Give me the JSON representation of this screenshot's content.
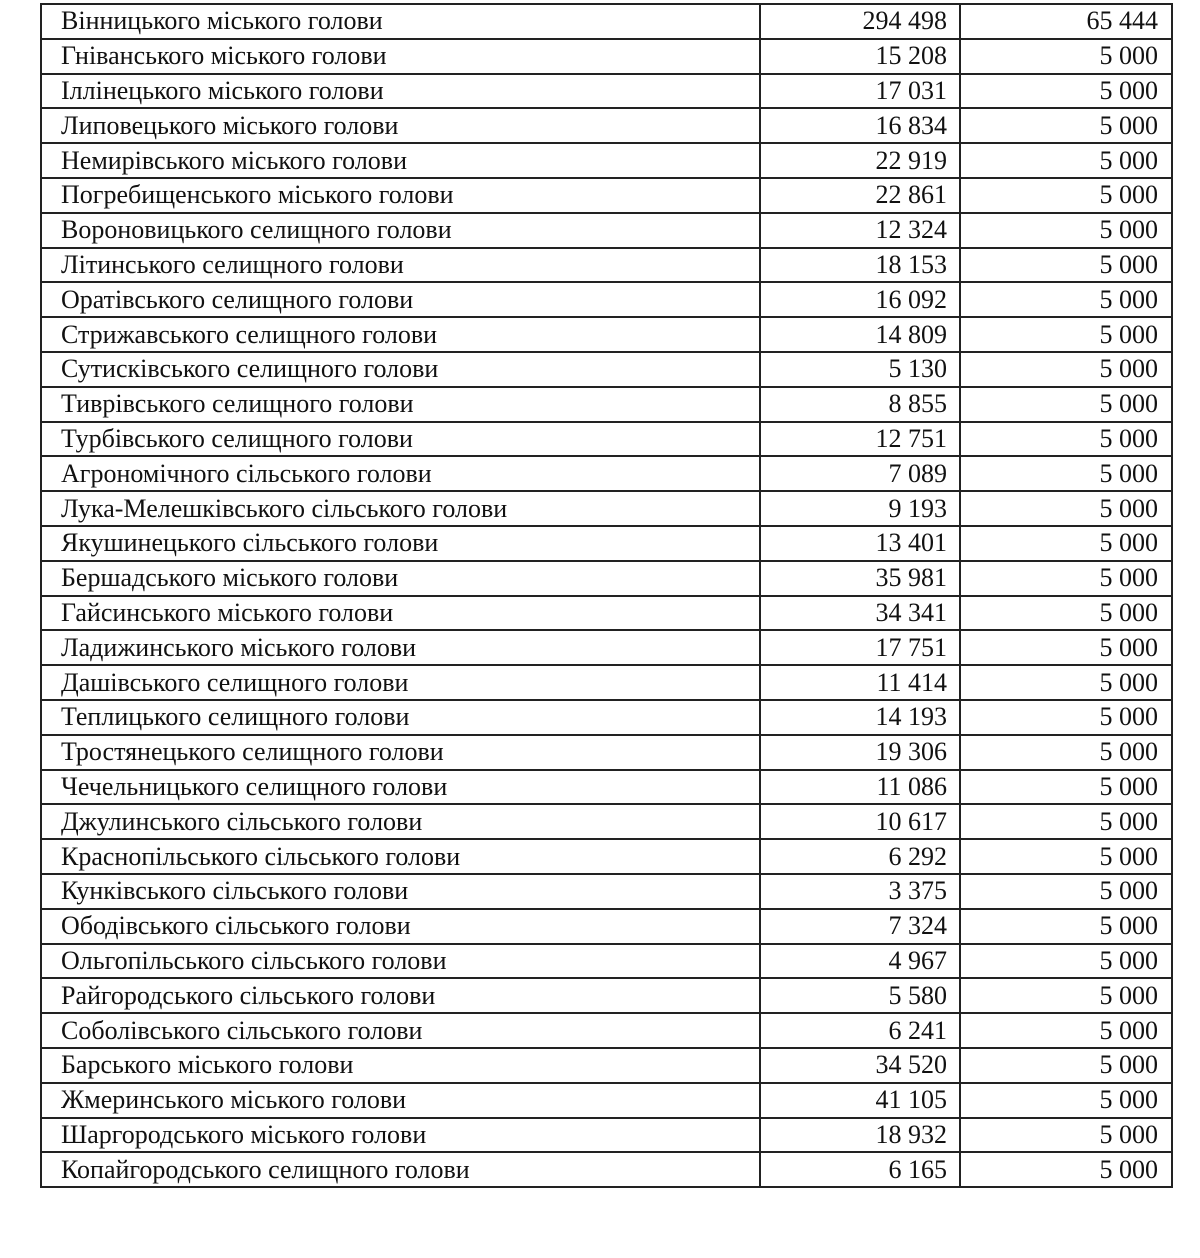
{
  "table": {
    "rows": [
      {
        "name": "Вінницького міського голови",
        "population": "294 498",
        "amount": "65 444"
      },
      {
        "name": "Гніванського міського голови",
        "population": "15 208",
        "amount": "5 000"
      },
      {
        "name": "Іллінецького міського голови",
        "population": "17 031",
        "amount": "5 000"
      },
      {
        "name": "Липовецького міського голови",
        "population": "16 834",
        "amount": "5 000"
      },
      {
        "name": "Немирівського міського голови",
        "population": "22 919",
        "amount": "5 000"
      },
      {
        "name": "Погребищенського міського голови",
        "population": "22 861",
        "amount": "5 000"
      },
      {
        "name": "Вороновицького селищного голови",
        "population": "12 324",
        "amount": "5 000"
      },
      {
        "name": "Літинського селищного голови",
        "population": "18 153",
        "amount": "5 000"
      },
      {
        "name": "Оратівського селищного голови",
        "population": "16 092",
        "amount": "5 000"
      },
      {
        "name": "Стрижавського селищного голови",
        "population": "14 809",
        "amount": "5 000"
      },
      {
        "name": "Сутисківського селищного голови",
        "population": "5 130",
        "amount": "5 000"
      },
      {
        "name": "Тиврівського селищного голови",
        "population": "8 855",
        "amount": "5 000"
      },
      {
        "name": "Турбівського селищного голови",
        "population": "12 751",
        "amount": "5 000"
      },
      {
        "name": "Агрономічного сільського голови",
        "population": "7 089",
        "amount": "5 000"
      },
      {
        "name": "Лука-Мелешківського сільського голови",
        "population": "9 193",
        "amount": "5 000"
      },
      {
        "name": "Якушинецького сільського голови",
        "population": "13 401",
        "amount": "5 000"
      },
      {
        "name": "Бершадського міського голови",
        "population": "35 981",
        "amount": "5 000"
      },
      {
        "name": "Гайсинського міського голови",
        "population": "34 341",
        "amount": "5 000"
      },
      {
        "name": "Ладижинського міського голови",
        "population": "17 751",
        "amount": "5 000"
      },
      {
        "name": "Дашівського селищного голови",
        "population": "11 414",
        "amount": "5 000"
      },
      {
        "name": "Теплицького селищного голови",
        "population": "14 193",
        "amount": "5 000"
      },
      {
        "name": "Тростянецького селищного голови",
        "population": "19 306",
        "amount": "5 000"
      },
      {
        "name": "Чечельницького селищного голови",
        "population": "11 086",
        "amount": "5 000"
      },
      {
        "name": "Джулинського сільського голови",
        "population": "10 617",
        "amount": "5 000"
      },
      {
        "name": "Краснопільського сільського голови",
        "population": "6 292",
        "amount": "5 000"
      },
      {
        "name": "Кунківського сільського голови",
        "population": "3 375",
        "amount": "5 000"
      },
      {
        "name": "Ободівського сільського голови",
        "population": "7 324",
        "amount": "5 000"
      },
      {
        "name": "Ольгопільського сільського голови",
        "population": "4 967",
        "amount": "5 000"
      },
      {
        "name": "Райгородського сільського голови",
        "population": "5 580",
        "amount": "5 000"
      },
      {
        "name": "Соболівського сільського голови",
        "population": "6 241",
        "amount": "5 000"
      },
      {
        "name": "Барського міського голови",
        "population": "34 520",
        "amount": "5 000"
      },
      {
        "name": "Жмеринського міського голови",
        "population": "41 105",
        "amount": "5 000"
      },
      {
        "name": "Шаргородського міського голови",
        "population": "18 932",
        "amount": "5 000"
      },
      {
        "name": "Копайгородського селищного голови",
        "population": "6 165",
        "amount": "5 000"
      }
    ]
  }
}
